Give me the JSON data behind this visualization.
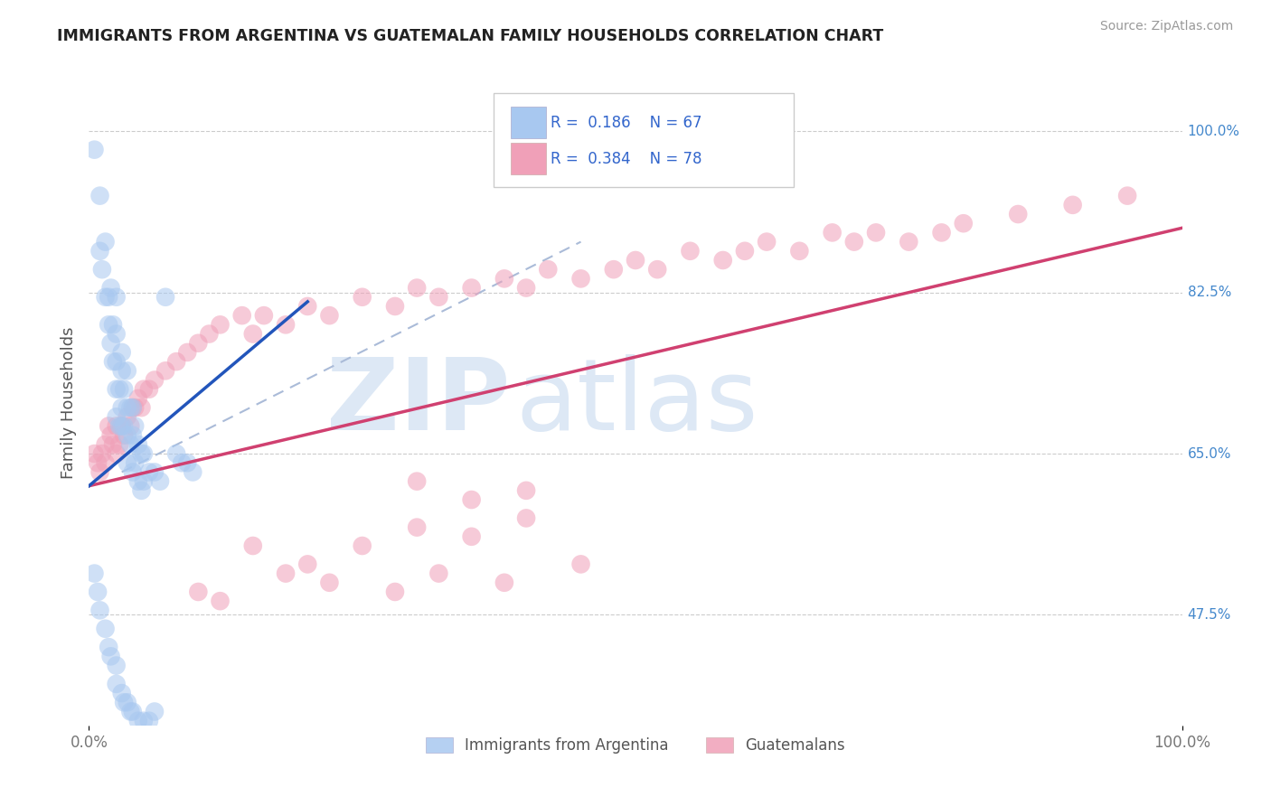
{
  "title": "IMMIGRANTS FROM ARGENTINA VS GUATEMALAN FAMILY HOUSEHOLDS CORRELATION CHART",
  "source": "Source: ZipAtlas.com",
  "ylabel": "Family Households",
  "ytick_labels": [
    "47.5%",
    "65.0%",
    "82.5%",
    "100.0%"
  ],
  "ytick_values": [
    0.475,
    0.65,
    0.825,
    1.0
  ],
  "xlim": [
    0.0,
    1.0
  ],
  "ylim": [
    0.355,
    1.055
  ],
  "legend_r_blue": "0.186",
  "legend_n_blue": "67",
  "legend_r_pink": "0.384",
  "legend_n_pink": "78",
  "blue_color": "#a8c8f0",
  "pink_color": "#f0a0b8",
  "blue_line_color": "#2255bb",
  "pink_line_color": "#d04070",
  "dashed_line_color": "#aabbd8",
  "watermark_color": "#dde8f5",
  "argentina_x": [
    0.005,
    0.01,
    0.01,
    0.012,
    0.015,
    0.015,
    0.018,
    0.018,
    0.02,
    0.02,
    0.022,
    0.022,
    0.025,
    0.025,
    0.025,
    0.025,
    0.025,
    0.028,
    0.028,
    0.03,
    0.03,
    0.03,
    0.03,
    0.032,
    0.032,
    0.035,
    0.035,
    0.035,
    0.035,
    0.038,
    0.038,
    0.04,
    0.04,
    0.04,
    0.042,
    0.042,
    0.045,
    0.045,
    0.048,
    0.048,
    0.05,
    0.05,
    0.055,
    0.06,
    0.065,
    0.07,
    0.08,
    0.085,
    0.09,
    0.095,
    0.005,
    0.008,
    0.01,
    0.015,
    0.018,
    0.02,
    0.025,
    0.025,
    0.03,
    0.032,
    0.035,
    0.038,
    0.04,
    0.045,
    0.05,
    0.055,
    0.06
  ],
  "argentina_y": [
    0.98,
    0.93,
    0.87,
    0.85,
    0.88,
    0.82,
    0.82,
    0.79,
    0.83,
    0.77,
    0.79,
    0.75,
    0.82,
    0.78,
    0.75,
    0.72,
    0.69,
    0.72,
    0.68,
    0.76,
    0.74,
    0.7,
    0.68,
    0.72,
    0.68,
    0.74,
    0.7,
    0.67,
    0.64,
    0.7,
    0.66,
    0.7,
    0.67,
    0.63,
    0.68,
    0.64,
    0.66,
    0.62,
    0.65,
    0.61,
    0.65,
    0.62,
    0.63,
    0.63,
    0.62,
    0.82,
    0.65,
    0.64,
    0.64,
    0.63,
    0.52,
    0.5,
    0.48,
    0.46,
    0.44,
    0.43,
    0.42,
    0.4,
    0.39,
    0.38,
    0.38,
    0.37,
    0.37,
    0.36,
    0.36,
    0.36,
    0.37
  ],
  "guatemalan_x": [
    0.005,
    0.008,
    0.01,
    0.012,
    0.015,
    0.015,
    0.018,
    0.02,
    0.022,
    0.025,
    0.025,
    0.028,
    0.03,
    0.032,
    0.035,
    0.038,
    0.04,
    0.042,
    0.045,
    0.048,
    0.05,
    0.055,
    0.06,
    0.07,
    0.08,
    0.09,
    0.1,
    0.11,
    0.12,
    0.14,
    0.15,
    0.16,
    0.18,
    0.2,
    0.22,
    0.25,
    0.28,
    0.3,
    0.32,
    0.35,
    0.38,
    0.4,
    0.42,
    0.45,
    0.48,
    0.5,
    0.52,
    0.55,
    0.58,
    0.6,
    0.62,
    0.65,
    0.68,
    0.7,
    0.72,
    0.75,
    0.78,
    0.8,
    0.85,
    0.9,
    0.95,
    0.15,
    0.2,
    0.25,
    0.3,
    0.35,
    0.4,
    0.3,
    0.35,
    0.4,
    0.1,
    0.12,
    0.18,
    0.22,
    0.28,
    0.32,
    0.38,
    0.45
  ],
  "guatemalan_y": [
    0.65,
    0.64,
    0.63,
    0.65,
    0.66,
    0.64,
    0.68,
    0.67,
    0.66,
    0.68,
    0.65,
    0.66,
    0.68,
    0.67,
    0.69,
    0.68,
    0.7,
    0.7,
    0.71,
    0.7,
    0.72,
    0.72,
    0.73,
    0.74,
    0.75,
    0.76,
    0.77,
    0.78,
    0.79,
    0.8,
    0.78,
    0.8,
    0.79,
    0.81,
    0.8,
    0.82,
    0.81,
    0.83,
    0.82,
    0.83,
    0.84,
    0.83,
    0.85,
    0.84,
    0.85,
    0.86,
    0.85,
    0.87,
    0.86,
    0.87,
    0.88,
    0.87,
    0.89,
    0.88,
    0.89,
    0.88,
    0.89,
    0.9,
    0.91,
    0.92,
    0.93,
    0.55,
    0.53,
    0.55,
    0.57,
    0.56,
    0.58,
    0.62,
    0.6,
    0.61,
    0.5,
    0.49,
    0.52,
    0.51,
    0.5,
    0.52,
    0.51,
    0.53
  ],
  "blue_line_x": [
    0.0,
    0.2
  ],
  "blue_line_y": [
    0.615,
    0.815
  ],
  "pink_line_x": [
    0.0,
    1.0
  ],
  "pink_line_y": [
    0.615,
    0.895
  ],
  "dashed_line_x": [
    0.03,
    0.45
  ],
  "dashed_line_y": [
    0.63,
    0.88
  ]
}
